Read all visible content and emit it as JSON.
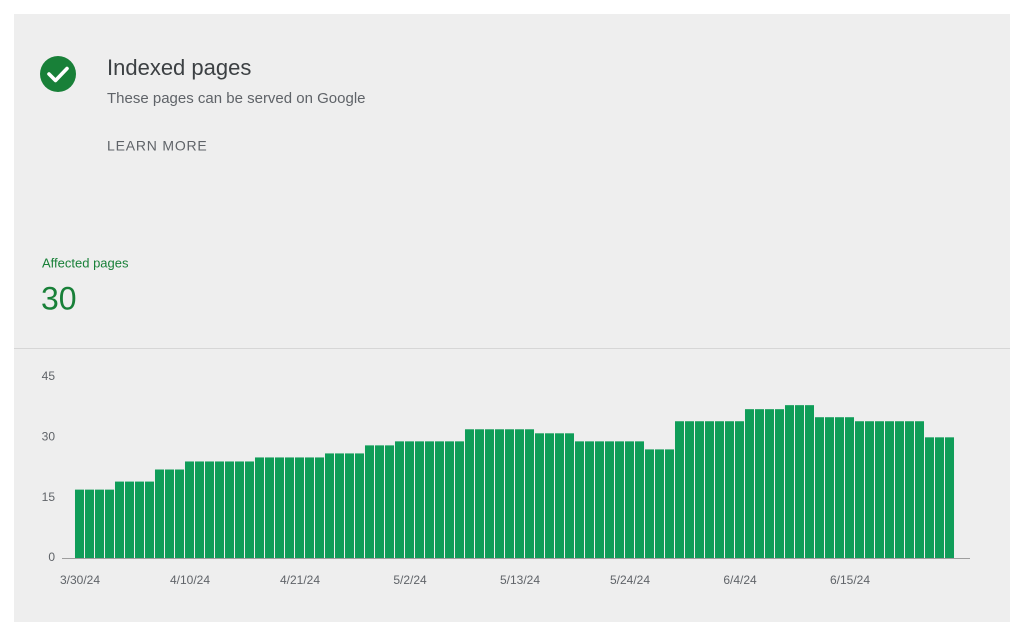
{
  "header": {
    "title": "Indexed pages",
    "subtitle": "These pages can be served on Google",
    "link": "LEARN MORE"
  },
  "summary": {
    "label": "Affected pages",
    "value": 30
  },
  "chart_data": {
    "type": "bar",
    "color": "#0f9d58",
    "categories": [
      "3/30/24",
      null,
      null,
      null,
      null,
      null,
      null,
      null,
      null,
      null,
      null,
      "4/10/24",
      null,
      null,
      null,
      null,
      null,
      null,
      null,
      null,
      null,
      null,
      "4/21/24",
      null,
      null,
      null,
      null,
      null,
      null,
      null,
      null,
      null,
      null,
      "5/2/24",
      null,
      null,
      null,
      null,
      null,
      null,
      null,
      null,
      null,
      null,
      "5/13/24",
      null,
      null,
      null,
      null,
      null,
      null,
      null,
      null,
      null,
      null,
      "5/24/24",
      null,
      null,
      null,
      null,
      null,
      null,
      null,
      null,
      null,
      null,
      "6/4/24",
      null,
      null,
      null,
      null,
      null,
      null,
      null,
      null,
      null,
      null,
      "6/15/24",
      null,
      null,
      null,
      null,
      null,
      null,
      null,
      null,
      null,
      null
    ],
    "values": [
      17,
      17,
      17,
      17,
      19,
      19,
      19,
      19,
      22,
      22,
      22,
      24,
      24,
      24,
      24,
      24,
      24,
      24,
      25,
      25,
      25,
      25,
      25,
      25,
      25,
      26,
      26,
      26,
      26,
      28,
      28,
      28,
      29,
      29,
      29,
      29,
      29,
      29,
      29,
      32,
      32,
      32,
      32,
      32,
      32,
      32,
      31,
      31,
      31,
      31,
      29,
      29,
      29,
      29,
      29,
      29,
      29,
      27,
      27,
      27,
      34,
      34,
      34,
      34,
      34,
      34,
      34,
      37,
      37,
      37,
      37,
      38,
      38,
      38,
      35,
      35,
      35,
      35,
      34,
      34,
      34,
      34,
      34,
      34,
      34,
      30,
      30,
      30
    ],
    "ylim": [
      0,
      45
    ],
    "yticks": [
      0,
      15,
      30,
      45
    ],
    "grid": false
  }
}
